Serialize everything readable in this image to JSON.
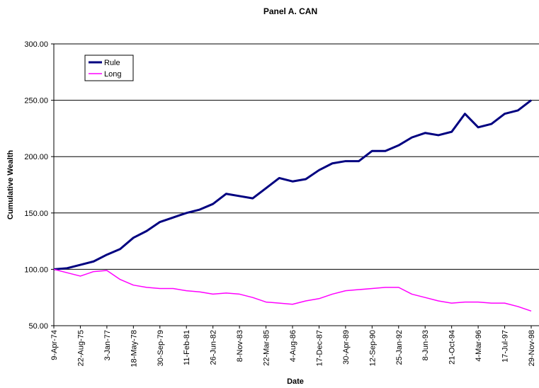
{
  "chart_data": {
    "type": "line",
    "title": "Panel A. CAN",
    "xlabel": "Date",
    "ylabel": "Cumulative Wealth",
    "categories": [
      "9-Apr-74",
      null,
      "22-Aug-75",
      null,
      "3-Jan-77",
      null,
      "18-May-78",
      null,
      "30-Sep-79",
      null,
      "11-Feb-81",
      null,
      "26-Jun-82",
      null,
      "8-Nov-83",
      null,
      "22-Mar-85",
      null,
      "4-Aug-86",
      null,
      "17-Dec-87",
      null,
      "30-Apr-89",
      null,
      "12-Sep-90",
      null,
      "25-Jan-92",
      null,
      "8-Jun-93",
      null,
      "21-Oct-94",
      null,
      "4-Mar-96",
      null,
      "17-Jul-97",
      null,
      "29-Nov-98"
    ],
    "series": [
      {
        "name": "Rule",
        "color": "#000080",
        "values": [
          100,
          101,
          104,
          107,
          113,
          118,
          128,
          134,
          142,
          146,
          150,
          153,
          158,
          167,
          165,
          163,
          172,
          181,
          178,
          180,
          188,
          194,
          196,
          196,
          205,
          205,
          210,
          217,
          221,
          219,
          222,
          238,
          226,
          229,
          238,
          241,
          250
        ]
      },
      {
        "name": "Long",
        "color": "#ff00ff",
        "values": [
          100,
          97,
          94,
          98,
          99,
          91,
          86,
          84,
          83,
          83,
          81,
          80,
          78,
          79,
          78,
          75,
          71,
          70,
          69,
          72,
          74,
          78,
          81,
          82,
          83,
          84,
          84,
          78,
          75,
          72,
          70,
          71,
          71,
          70,
          70,
          67,
          63
        ]
      }
    ],
    "ylim": [
      50,
      300
    ],
    "yticks": [
      {
        "value": 50,
        "label": "50.00"
      },
      {
        "value": 100,
        "label": "100.00"
      },
      {
        "value": 150,
        "label": "150.00"
      },
      {
        "value": 200,
        "label": "200.00"
      },
      {
        "value": 250,
        "label": "250.00"
      },
      {
        "value": 300,
        "label": "300.00"
      }
    ],
    "grid": true,
    "legend": "upper left"
  }
}
